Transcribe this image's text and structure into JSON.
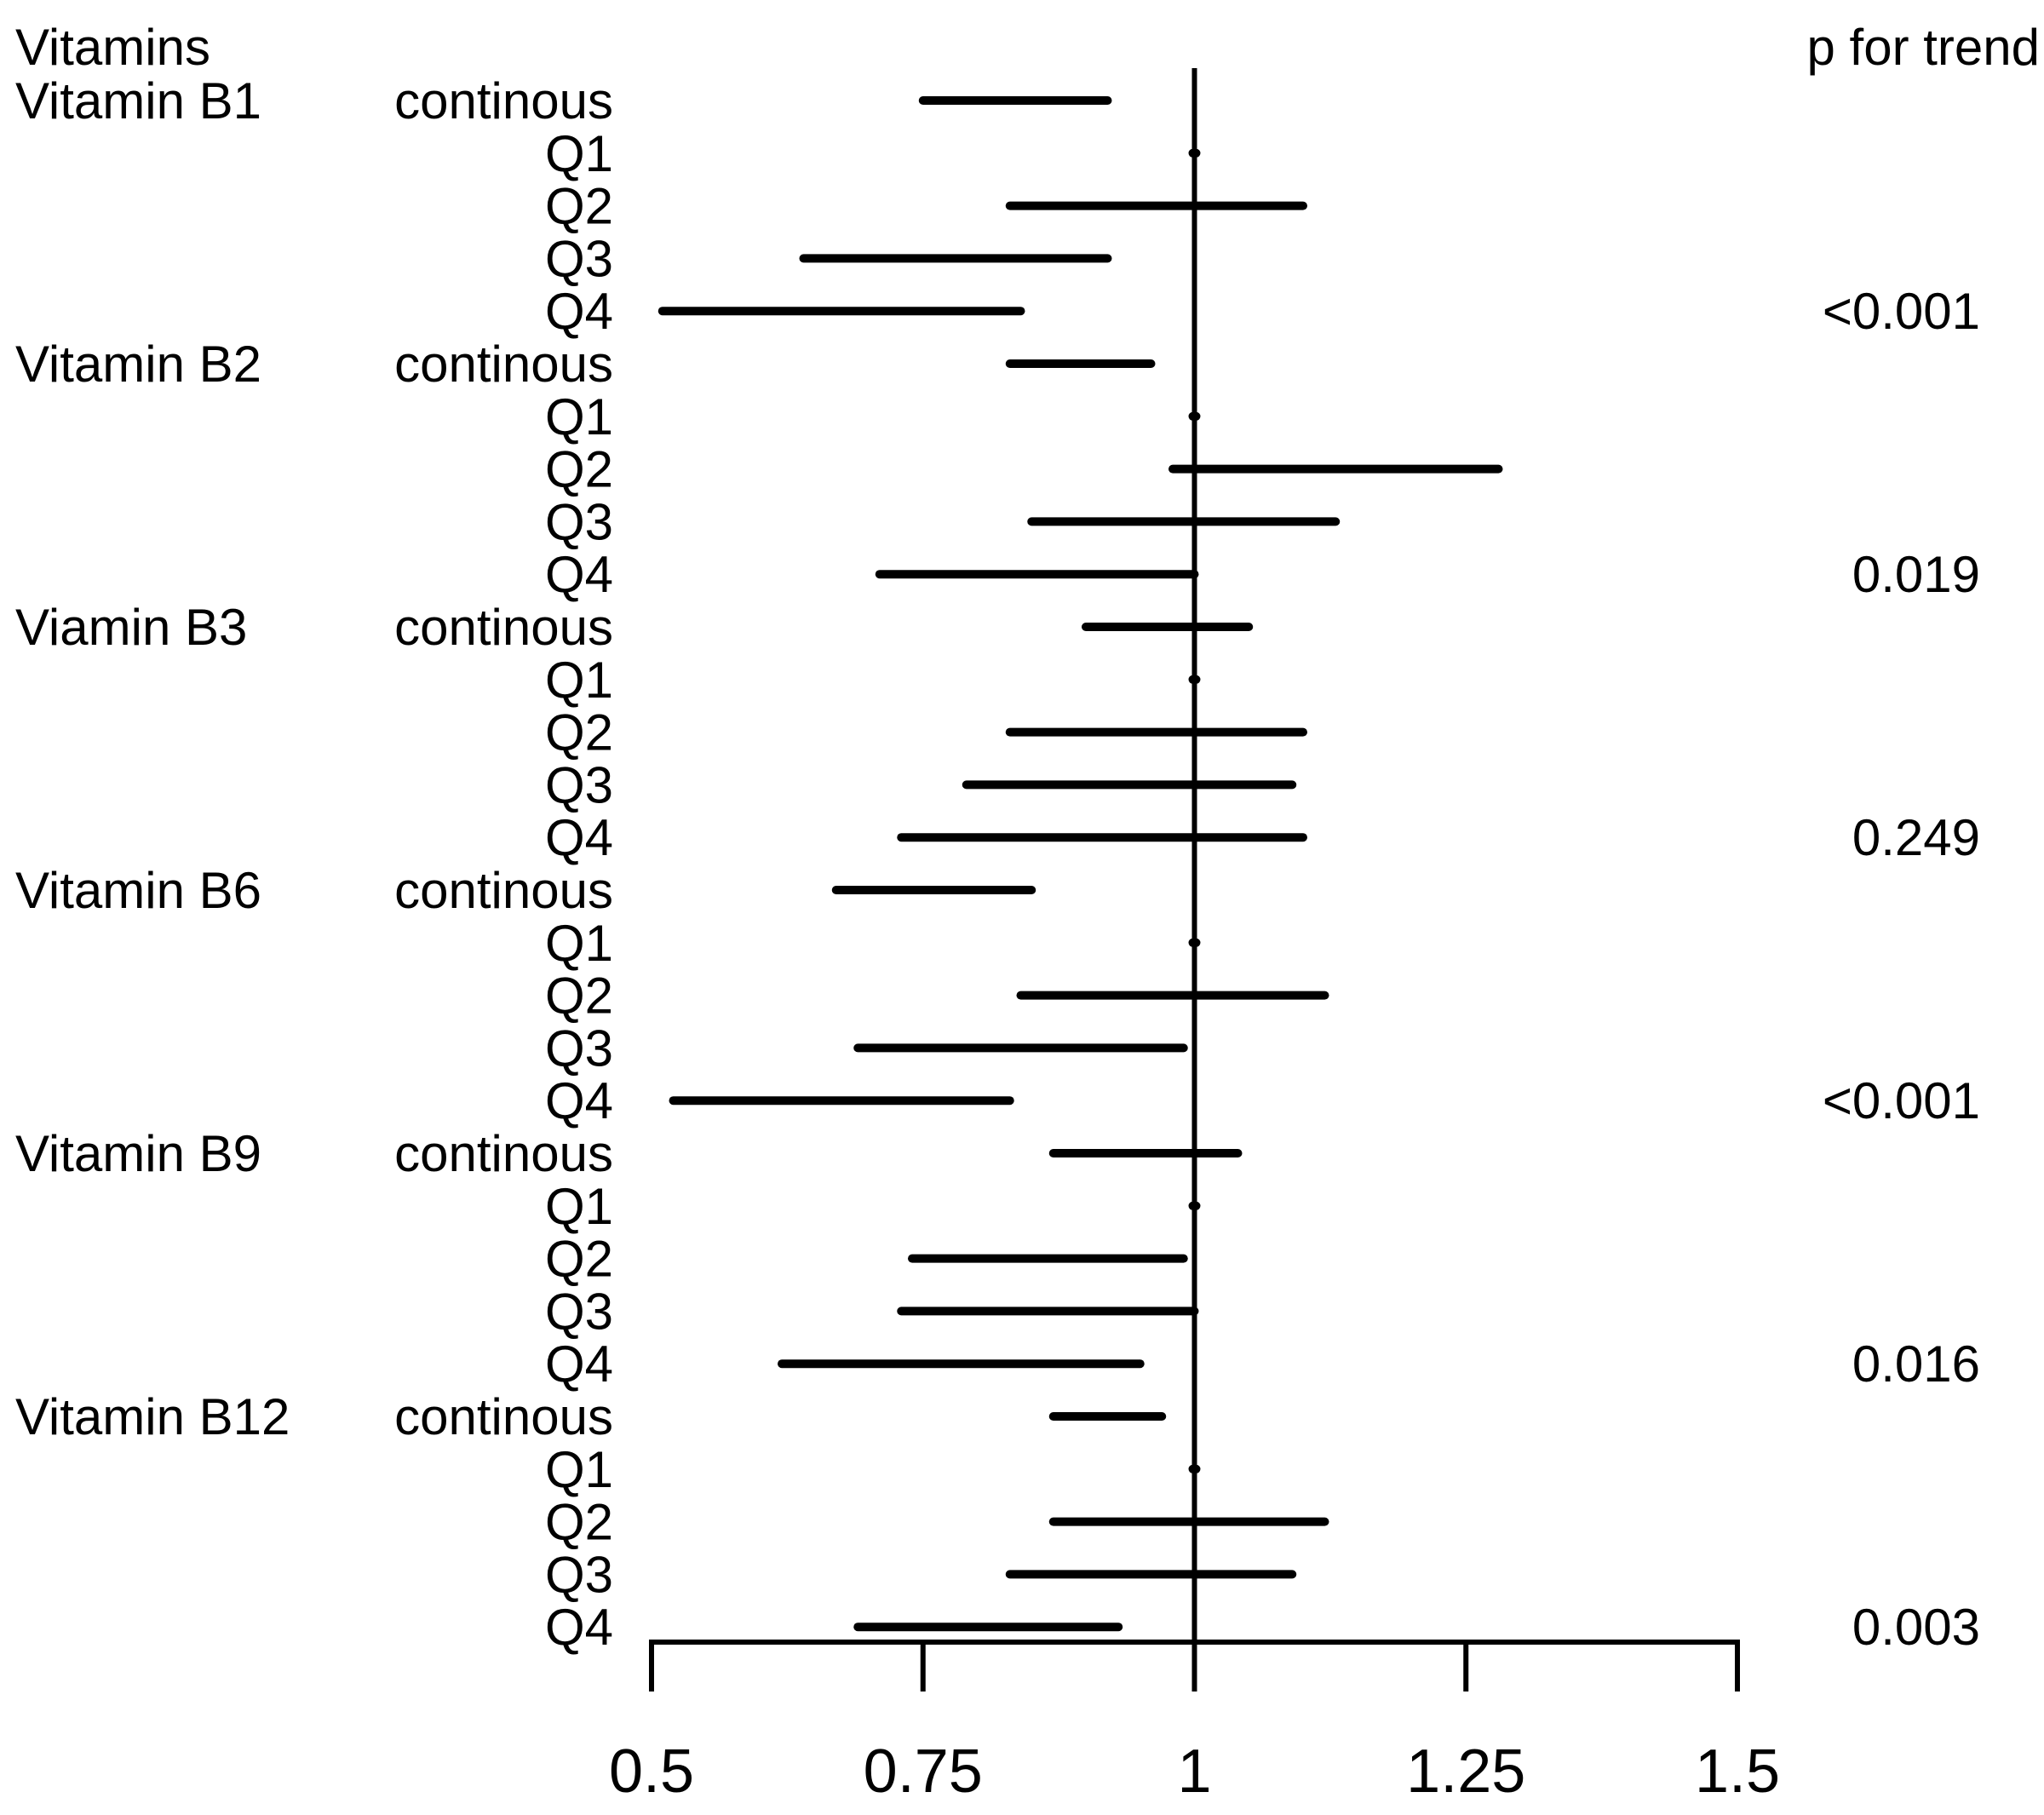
{
  "chart_data": {
    "type": "forest",
    "title": "",
    "headers": {
      "group": "Vitamins",
      "p_trend": "p for trend"
    },
    "reference_value": 1,
    "xlim": [
      0.5,
      1.5
    ],
    "x_ticks": [
      {
        "value": 0.5,
        "label": "0.5"
      },
      {
        "value": 0.75,
        "label": "0.75"
      },
      {
        "value": 1,
        "label": "1"
      },
      {
        "value": 1.25,
        "label": "1.25"
      },
      {
        "value": 1.5,
        "label": "1.5"
      }
    ],
    "groups": [
      {
        "name": "Vitamin B1",
        "p_trend": "<0.001",
        "rows": [
          {
            "label": "continous",
            "lower": 0.75,
            "upper": 0.92
          },
          {
            "label": "Q1",
            "lower": 1.0,
            "upper": 1.0
          },
          {
            "label": "Q2",
            "lower": 0.83,
            "upper": 1.1
          },
          {
            "label": "Q3",
            "lower": 0.64,
            "upper": 0.92
          },
          {
            "label": "Q4",
            "lower": 0.51,
            "upper": 0.84
          }
        ]
      },
      {
        "name": "Vitamin B2",
        "p_trend": "0.019",
        "rows": [
          {
            "label": "continous",
            "lower": 0.83,
            "upper": 0.96
          },
          {
            "label": "Q1",
            "lower": 1.0,
            "upper": 1.0
          },
          {
            "label": "Q2",
            "lower": 0.98,
            "upper": 1.28
          },
          {
            "label": "Q3",
            "lower": 0.85,
            "upper": 1.13
          },
          {
            "label": "Q4",
            "lower": 0.71,
            "upper": 1.0
          }
        ]
      },
      {
        "name": "Viamin B3",
        "p_trend": "0.249",
        "rows": [
          {
            "label": "continous",
            "lower": 0.9,
            "upper": 1.05
          },
          {
            "label": "Q1",
            "lower": 1.0,
            "upper": 1.0
          },
          {
            "label": "Q2",
            "lower": 0.83,
            "upper": 1.1
          },
          {
            "label": "Q3",
            "lower": 0.79,
            "upper": 1.09
          },
          {
            "label": "Q4",
            "lower": 0.73,
            "upper": 1.1
          }
        ]
      },
      {
        "name": "Vitamin B6",
        "p_trend": "<0.001",
        "rows": [
          {
            "label": "continous",
            "lower": 0.67,
            "upper": 0.85
          },
          {
            "label": "Q1",
            "lower": 1.0,
            "upper": 1.0
          },
          {
            "label": "Q2",
            "lower": 0.84,
            "upper": 1.12
          },
          {
            "label": "Q3",
            "lower": 0.69,
            "upper": 0.99
          },
          {
            "label": "Q4",
            "lower": 0.52,
            "upper": 0.83
          }
        ]
      },
      {
        "name": "Vitamin B9",
        "p_trend": "0.016",
        "rows": [
          {
            "label": "continous",
            "lower": 0.87,
            "upper": 1.04
          },
          {
            "label": "Q1",
            "lower": 1.0,
            "upper": 1.0
          },
          {
            "label": "Q2",
            "lower": 0.74,
            "upper": 0.99
          },
          {
            "label": "Q3",
            "lower": 0.73,
            "upper": 1.0
          },
          {
            "label": "Q4",
            "lower": 0.62,
            "upper": 0.95
          }
        ]
      },
      {
        "name": "Vitamin B12",
        "p_trend": "0.003",
        "rows": [
          {
            "label": "continous",
            "lower": 0.87,
            "upper": 0.97
          },
          {
            "label": "Q1",
            "lower": 1.0,
            "upper": 1.0
          },
          {
            "label": "Q2",
            "lower": 0.87,
            "upper": 1.12
          },
          {
            "label": "Q3",
            "lower": 0.83,
            "upper": 1.09
          },
          {
            "label": "Q4",
            "lower": 0.69,
            "upper": 0.93
          }
        ]
      }
    ]
  }
}
